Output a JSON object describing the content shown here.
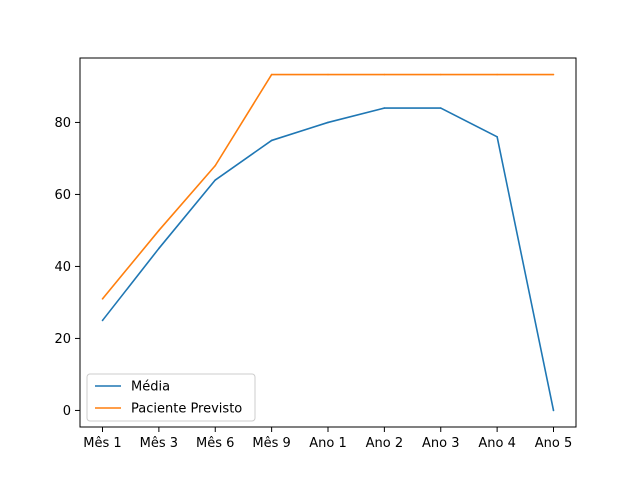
{
  "chart_data": {
    "type": "line",
    "title": "",
    "xlabel": "",
    "ylabel": "",
    "categories": [
      "Mês 1",
      "Mês 3",
      "Mês 6",
      "Mês 9",
      "Ano 1",
      "Ano 2",
      "Ano 3",
      "Ano 4",
      "Ano 5"
    ],
    "series": [
      {
        "name": "Média",
        "color": "#1f77b4",
        "values": [
          25,
          45,
          64,
          75,
          80,
          84,
          84,
          76,
          0
        ]
      },
      {
        "name": "Paciente Previsto",
        "color": "#ff7f0e",
        "values": [
          31,
          50,
          68,
          93.3,
          93.3,
          93.3,
          93.3,
          93.3,
          93.3
        ]
      }
    ],
    "ylim": [
      -4.6,
      97.9
    ],
    "yticks": [
      0,
      20,
      40,
      60,
      80
    ],
    "legend": "lower-left",
    "grid": false
  }
}
